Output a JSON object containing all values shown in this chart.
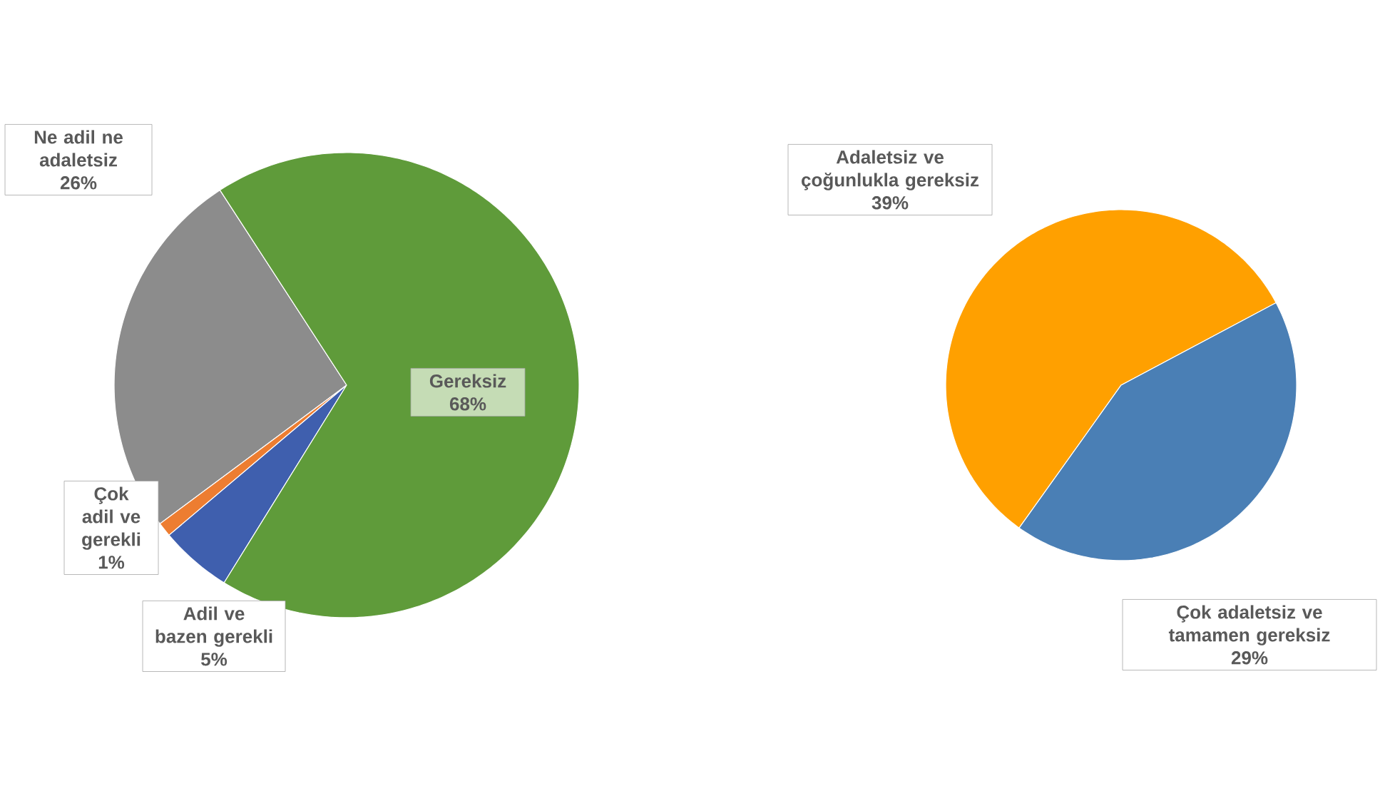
{
  "chart_data": [
    {
      "type": "pie",
      "categories": [
        "Ne adil ne adaletsiz",
        "Çok adil ve gerekli",
        "Adil ve bazen gerekli",
        "Gereksiz"
      ],
      "values": [
        26,
        1,
        5,
        68
      ],
      "colors": [
        "#8c8c8c",
        "#ed7d31",
        "#3f5fae",
        "#5f9b3a"
      ],
      "value_labels": [
        "26%",
        "1%",
        "5%",
        "68%"
      ]
    },
    {
      "type": "pie",
      "categories": [
        "Adaletsiz ve çoğunlukla gereksiz",
        "Çok adaletsiz ve tamamen gereksiz"
      ],
      "values": [
        39,
        29
      ],
      "colors": [
        "#ffa000",
        "#4a7fb5"
      ],
      "value_labels": [
        "39%",
        "29%"
      ]
    }
  ]
}
